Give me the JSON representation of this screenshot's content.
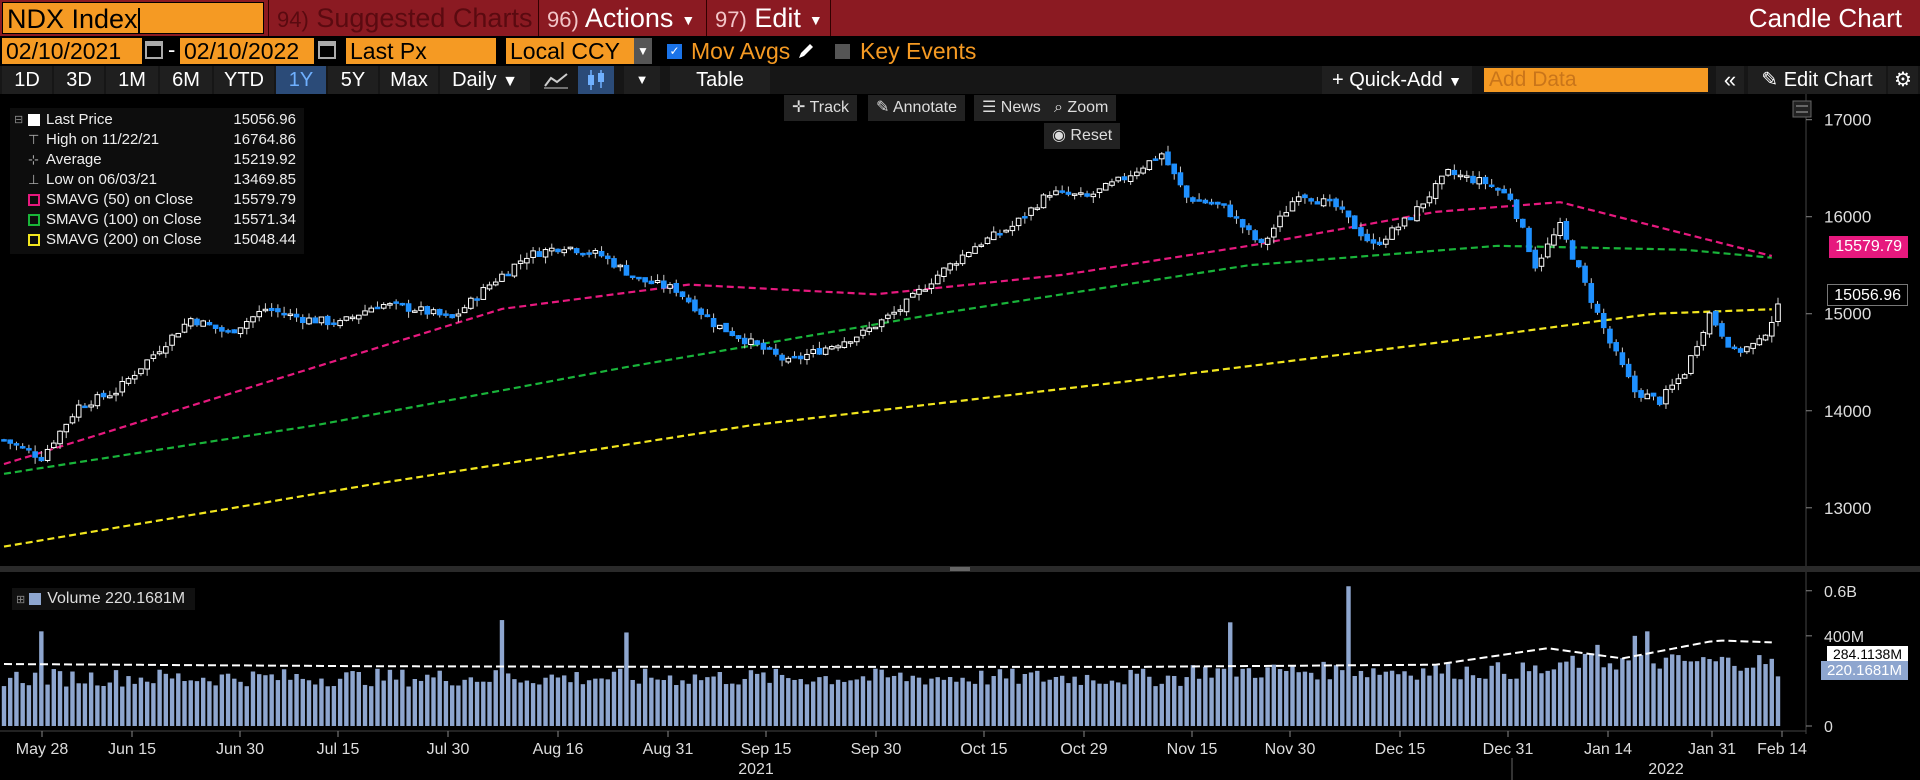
{
  "header": {
    "ticker_value": "NDX Index",
    "suggested": {
      "num": "94)",
      "label": "Suggested Charts"
    },
    "actions": {
      "num": "96)",
      "label": "Actions"
    },
    "edit": {
      "num": "97)",
      "label": "Edit"
    },
    "title": "Candle Chart"
  },
  "options": {
    "start_date": "02/10/2021",
    "end_date": "02/10/2022",
    "separator": "-",
    "field": "Last Px",
    "currency": "Local CCY",
    "mov_avgs_label": "Mov Avgs",
    "key_events_label": "Key Events"
  },
  "toolbar": {
    "ranges": [
      "1D",
      "3D",
      "1M",
      "6M",
      "YTD",
      "1Y",
      "5Y",
      "Max"
    ],
    "selected_range": "1Y",
    "period": "Daily",
    "table_label": "Table",
    "quick_add_label": "+ Quick-Add",
    "add_data_placeholder": "Add Data",
    "edit_chart_label": "Edit Chart"
  },
  "chart_tools": {
    "track": "Track",
    "annotate": "Annotate",
    "news": "News",
    "zoom": "Zoom",
    "reset": "Reset"
  },
  "legend": {
    "last_price": {
      "label": "Last Price",
      "value": "15056.96"
    },
    "high": {
      "label": "High on 11/22/21",
      "value": "16764.86"
    },
    "average": {
      "label": "Average",
      "value": "15219.92"
    },
    "low": {
      "label": "Low on 06/03/21",
      "value": "13469.85"
    },
    "sma50": {
      "label": "SMAVG (50)  on Close",
      "value": "15579.79"
    },
    "sma100": {
      "label": "SMAVG (100)  on Close",
      "value": "15571.34"
    },
    "sma200": {
      "label": "SMAVG (200)  on Close",
      "value": "15048.44"
    }
  },
  "price_labels": {
    "sma50": "15579.79",
    "last": "15056.96"
  },
  "volume_legend": {
    "label": "Volume",
    "value": "220.1681M"
  },
  "volume_labels": {
    "avg": "284.1138M",
    "last": "220.1681M"
  },
  "colors": {
    "header_bg": "#8b1a22",
    "accent_orange": "#f59a23",
    "candle_up": "#ffffff",
    "candle_down": "#1e90ff",
    "sma50": "#e6197e",
    "sma100": "#19b43a",
    "sma200": "#f2e61e",
    "volume": "#8ea6cf"
  },
  "chart_data": {
    "type": "candlestick",
    "title": "",
    "x_tick_labels": [
      "May 28",
      "Jun 15",
      "Jun 30",
      "Jul 15",
      "Jul 30",
      "Aug 16",
      "Aug 31",
      "Sep 15",
      "Sep 30",
      "Oct 15",
      "Oct 29",
      "Nov 15",
      "Nov 30",
      "Dec 15",
      "Dec 31",
      "Jan 14",
      "Jan 31",
      "Feb 14"
    ],
    "year_labels": [
      "2021",
      "2022"
    ],
    "y_ticks": [
      13000,
      14000,
      15000,
      16000,
      17000
    ],
    "ylim": [
      12400,
      17100
    ],
    "volume_ticks": [
      "0.6B",
      "400M",
      "0"
    ],
    "volume_ylim": [
      0,
      630
    ],
    "price_path": [
      [
        0,
        13700
      ],
      [
        6,
        13520
      ],
      [
        12,
        14050
      ],
      [
        18,
        14200
      ],
      [
        24,
        14580
      ],
      [
        30,
        14950
      ],
      [
        36,
        14800
      ],
      [
        42,
        15050
      ],
      [
        48,
        14950
      ],
      [
        54,
        14900
      ],
      [
        60,
        15100
      ],
      [
        66,
        15050
      ],
      [
        72,
        14950
      ],
      [
        78,
        15300
      ],
      [
        84,
        15600
      ],
      [
        90,
        15700
      ],
      [
        96,
        15600
      ],
      [
        102,
        15350
      ],
      [
        108,
        15250
      ],
      [
        114,
        14900
      ],
      [
        120,
        14700
      ],
      [
        126,
        14500
      ],
      [
        132,
        14650
      ],
      [
        138,
        14800
      ],
      [
        144,
        15050
      ],
      [
        150,
        15400
      ],
      [
        156,
        15700
      ],
      [
        162,
        15900
      ],
      [
        168,
        16250
      ],
      [
        174,
        16200
      ],
      [
        180,
        16400
      ],
      [
        186,
        16650
      ],
      [
        190,
        16200
      ],
      [
        196,
        16100
      ],
      [
        202,
        15700
      ],
      [
        208,
        16250
      ],
      [
        214,
        16100
      ],
      [
        220,
        15700
      ],
      [
        226,
        16000
      ],
      [
        232,
        16450
      ],
      [
        238,
        16350
      ],
      [
        242,
        16200
      ],
      [
        246,
        15500
      ],
      [
        250,
        15900
      ],
      [
        254,
        15300
      ],
      [
        258,
        14700
      ],
      [
        262,
        14200
      ],
      [
        266,
        14100
      ],
      [
        270,
        14400
      ],
      [
        274,
        15000
      ],
      [
        278,
        14600
      ],
      [
        282,
        14700
      ],
      [
        285,
        15056.96
      ]
    ],
    "sma50_path": [
      [
        0,
        13450
      ],
      [
        40,
        14250
      ],
      [
        80,
        15050
      ],
      [
        110,
        15300
      ],
      [
        140,
        15200
      ],
      [
        170,
        15400
      ],
      [
        200,
        15700
      ],
      [
        230,
        16050
      ],
      [
        250,
        16150
      ],
      [
        285,
        15579.79
      ]
    ],
    "sma100_path": [
      [
        0,
        13350
      ],
      [
        50,
        13850
      ],
      [
        100,
        14450
      ],
      [
        150,
        15000
      ],
      [
        200,
        15500
      ],
      [
        240,
        15700
      ],
      [
        270,
        15660
      ],
      [
        285,
        15571.34
      ]
    ],
    "sma200_path": [
      [
        0,
        12600
      ],
      [
        60,
        13250
      ],
      [
        120,
        13850
      ],
      [
        180,
        14300
      ],
      [
        230,
        14700
      ],
      [
        265,
        15000
      ],
      [
        285,
        15048.44
      ]
    ],
    "volume_avg_path": [
      [
        0,
        275
      ],
      [
        60,
        265
      ],
      [
        120,
        262
      ],
      [
        180,
        262
      ],
      [
        230,
        272
      ],
      [
        248,
        345
      ],
      [
        260,
        300
      ],
      [
        275,
        380
      ],
      [
        285,
        370
      ]
    ]
  }
}
